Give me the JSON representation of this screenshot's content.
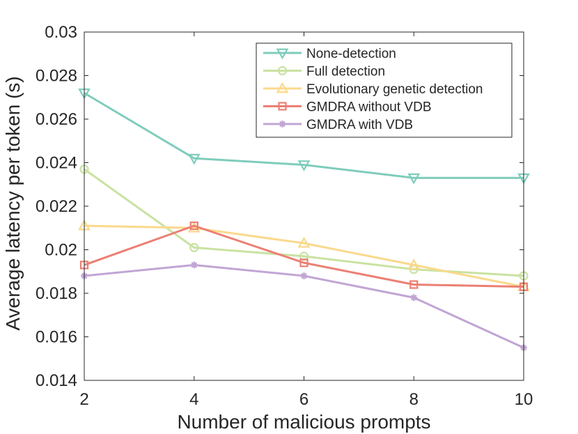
{
  "chart_data": {
    "type": "line",
    "title": "",
    "xlabel": "Number of malicious prompts",
    "ylabel": "Average latency per token (s)",
    "x": [
      2,
      4,
      6,
      8,
      10
    ],
    "xlim": [
      2,
      10
    ],
    "ylim": [
      0.014,
      0.03
    ],
    "xticks": [
      2,
      4,
      6,
      8,
      10
    ],
    "xtick_labels": [
      "2",
      "4",
      "6",
      "8",
      "10"
    ],
    "yticks": [
      0.014,
      0.016,
      0.018,
      0.02,
      0.022,
      0.024,
      0.026,
      0.028,
      0.03
    ],
    "ytick_labels": [
      "0.014",
      "0.016",
      "0.018",
      "0.02",
      "0.022",
      "0.024",
      "0.026",
      "0.028",
      "0.03"
    ],
    "grid": false,
    "legend_position": "top-right",
    "series": [
      {
        "name": "None-detection",
        "color": "#7fccbc",
        "marker": "triangle-down",
        "values": [
          0.0272,
          0.0242,
          0.0239,
          0.0233,
          0.0233
        ]
      },
      {
        "name": "Full detection",
        "color": "#c9e2a1",
        "marker": "circle",
        "values": [
          0.0237,
          0.0201,
          0.0197,
          0.0191,
          0.0188
        ]
      },
      {
        "name": "Evolutionary genetic detection",
        "color": "#fad98c",
        "marker": "triangle-up",
        "values": [
          0.0211,
          0.021,
          0.0203,
          0.0193,
          0.0183
        ]
      },
      {
        "name": "GMDRA without VDB",
        "color": "#ec7f73",
        "marker": "square",
        "values": [
          0.0193,
          0.0211,
          0.0194,
          0.0184,
          0.0183
        ]
      },
      {
        "name": "GMDRA with VDB",
        "color": "#c1a5d4",
        "marker": "asterisk",
        "values": [
          0.0188,
          0.0193,
          0.0188,
          0.0178,
          0.0155
        ]
      }
    ]
  }
}
